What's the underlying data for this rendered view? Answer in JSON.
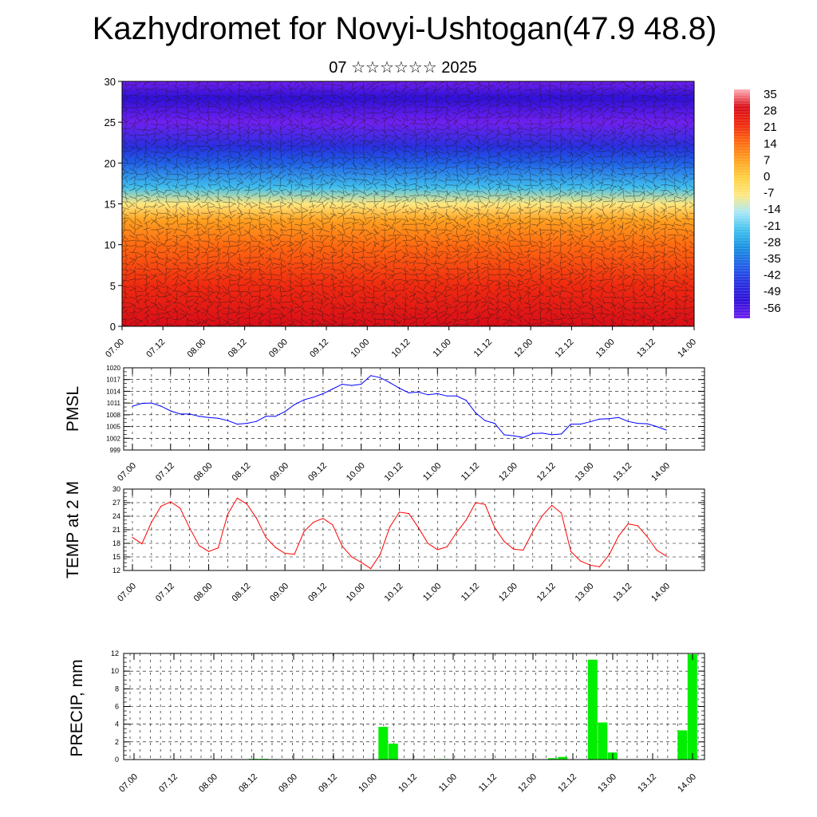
{
  "title": "Kazhydromet for Novyi-Ushtogan(47.9 48.8)",
  "subtitle": "07 ☆☆☆☆☆☆ 2025",
  "chart_data": [
    {
      "type": "heatmap",
      "title": "",
      "x_ticks": [
        "07.00",
        "07.12",
        "08.00",
        "08.12",
        "09.00",
        "09.12",
        "10.00",
        "10.12",
        "11.00",
        "11.12",
        "12.00",
        "12.12",
        "13.00",
        "13.12",
        "14.00"
      ],
      "y_ticks": [
        "0",
        "5",
        "10",
        "15",
        "20",
        "25",
        "30"
      ],
      "ylim": [
        0,
        30
      ],
      "colorbar_labels": [
        "35",
        "28",
        "21",
        "14",
        "7",
        "0",
        "-7",
        "-14",
        "-21",
        "-28",
        "-35",
        "-42",
        "-49",
        "-56"
      ],
      "colormap": [
        "#ffb0b8",
        "#d90d18",
        "#f02a10",
        "#ff6a10",
        "#ffa020",
        "#ffd040",
        "#ffe880",
        "#a8e8f8",
        "#40c0ee",
        "#1890e0",
        "#2060e8",
        "#2830e0",
        "#3010d8",
        "#7020f0"
      ],
      "vertical_profile": [
        {
          "level": 0,
          "value": 30
        },
        {
          "level": 5,
          "value": 24
        },
        {
          "level": 10,
          "value": 12
        },
        {
          "level": 13,
          "value": 5
        },
        {
          "level": 15,
          "value": -8
        },
        {
          "level": 17,
          "value": -20
        },
        {
          "level": 20,
          "value": -32
        },
        {
          "level": 22,
          "value": -45
        },
        {
          "level": 25,
          "value": -56
        },
        {
          "level": 28,
          "value": -52
        },
        {
          "level": 30,
          "value": -58
        }
      ]
    },
    {
      "type": "line",
      "ylabel": "PMSL",
      "ylim": [
        999,
        1020
      ],
      "y_ticks": [
        "1020",
        "1017",
        "1014",
        "1011",
        "1008",
        "1005",
        "1002",
        "999"
      ],
      "x_ticks": [
        "07.00",
        "07.12",
        "08.00",
        "08.12",
        "09.00",
        "09.12",
        "10.00",
        "10.12",
        "11.00",
        "11.12",
        "12.00",
        "12.12",
        "13.00",
        "13.12",
        "14.00"
      ],
      "color": "#0000ff",
      "values": [
        1010.2,
        1010.9,
        1011.0,
        1010.2,
        1009.0,
        1008.2,
        1008.2,
        1007.6,
        1007.3,
        1007.1,
        1006.5,
        1005.6,
        1005.8,
        1006.3,
        1007.6,
        1007.6,
        1008.8,
        1010.6,
        1011.8,
        1012.5,
        1013.4,
        1014.6,
        1015.8,
        1015.5,
        1015.8,
        1018.0,
        1017.5,
        1016.2,
        1014.8,
        1013.6,
        1013.8,
        1013.1,
        1013.4,
        1012.8,
        1012.8,
        1011.7,
        1008.5,
        1006.5,
        1005.8,
        1002.9,
        1002.6,
        1002.2,
        1003.2,
        1003.3,
        1002.9,
        1003.1,
        1005.6,
        1005.6,
        1006.2,
        1006.9,
        1007.0,
        1007.3,
        1006.3,
        1005.8,
        1005.7,
        1005.0,
        1004.1
      ]
    },
    {
      "type": "line",
      "ylabel": "TEMP at 2 M",
      "ylim": [
        12,
        30
      ],
      "y_ticks": [
        "30",
        "27",
        "24",
        "21",
        "18",
        "15",
        "12"
      ],
      "x_ticks": [
        "07.00",
        "07.12",
        "08.00",
        "08.12",
        "09.00",
        "09.12",
        "10.00",
        "10.12",
        "11.00",
        "11.12",
        "12.00",
        "12.12",
        "13.00",
        "13.12",
        "14.00"
      ],
      "color": "#ff0000",
      "values": [
        19.3,
        17.9,
        22.7,
        26.2,
        27.2,
        25.8,
        21.4,
        17.5,
        16.2,
        17.0,
        24.5,
        28.0,
        26.7,
        23.6,
        19.3,
        17.1,
        15.8,
        15.6,
        20.6,
        22.7,
        23.5,
        22.1,
        17.4,
        15.0,
        13.8,
        12.4,
        15.6,
        21.6,
        24.9,
        24.6,
        21.5,
        18.0,
        16.6,
        17.2,
        20.4,
        23.1,
        27.0,
        26.6,
        21.5,
        18.4,
        16.7,
        16.5,
        20.6,
        24.1,
        26.4,
        24.7,
        16.2,
        14.1,
        13.2,
        12.8,
        15.4,
        19.6,
        22.3,
        21.9,
        19.5,
        16.5,
        15.2
      ]
    },
    {
      "type": "bar",
      "ylabel": "PRECIP, mm",
      "ylim": [
        0,
        12
      ],
      "y_ticks": [
        "12",
        "10",
        "8",
        "6",
        "4",
        "2",
        "0"
      ],
      "x_ticks": [
        "07.00",
        "07.12",
        "08.00",
        "08.12",
        "09.00",
        "09.12",
        "10.00",
        "10.12",
        "11.00",
        "11.12",
        "12.00",
        "12.12",
        "13.00",
        "13.12",
        "14.00"
      ],
      "color": "#00ee00",
      "values": [
        0,
        0,
        0,
        0,
        0,
        0,
        0,
        0,
        0,
        0,
        0,
        0,
        0.08,
        0.08,
        0.05,
        0,
        0,
        0.05,
        0.05,
        0,
        0,
        0,
        0,
        0,
        0,
        3.7,
        1.8,
        0,
        0,
        0,
        0,
        0.05,
        0,
        0,
        0,
        0,
        0,
        0,
        0,
        0,
        0,
        0,
        0.15,
        0.3,
        0,
        0,
        11.3,
        4.2,
        0.8,
        0,
        0,
        0,
        0,
        0,
        0,
        3.3,
        11.9
      ]
    }
  ]
}
